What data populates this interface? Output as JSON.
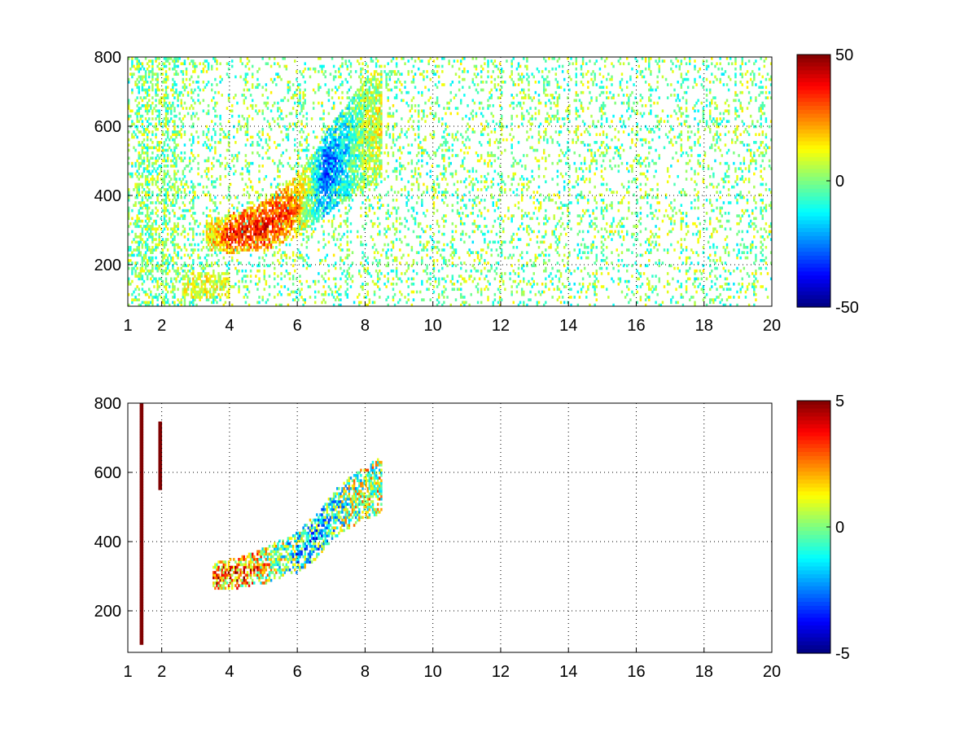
{
  "chart_data": [
    {
      "type": "heatmap",
      "panel": "top",
      "title": "",
      "xlabel": "",
      "ylabel": "",
      "xlim": [
        1,
        20
      ],
      "ylim": [
        80,
        800
      ],
      "xticks": [
        1,
        2,
        4,
        6,
        8,
        10,
        12,
        14,
        16,
        18,
        20
      ],
      "yticks": [
        200,
        400,
        600,
        800
      ],
      "grid": true,
      "colormap": "jet",
      "color_limits": [
        -50,
        50
      ],
      "colorbar_ticks": [
        50,
        0,
        -50
      ],
      "noise_density": 0.16,
      "noise_value_range": [
        -15,
        15
      ],
      "ridge": {
        "description": "curved high-amplitude band rising from ~280 at x=3.5 to ~600 at x=8",
        "centerline": [
          {
            "x": 3.4,
            "y": 285
          },
          {
            "x": 4.0,
            "y": 290
          },
          {
            "x": 5.0,
            "y": 310
          },
          {
            "x": 6.0,
            "y": 370
          },
          {
            "x": 6.5,
            "y": 420
          },
          {
            "x": 7.0,
            "y": 480
          },
          {
            "x": 7.5,
            "y": 530
          },
          {
            "x": 8.0,
            "y": 580
          },
          {
            "x": 8.4,
            "y": 610
          }
        ],
        "half_width": [
          {
            "x": 3.4,
            "w": 45
          },
          {
            "x": 6.0,
            "w": 90
          },
          {
            "x": 8.4,
            "w": 170
          }
        ],
        "value_profile": [
          {
            "x": 3.4,
            "v": 15
          },
          {
            "x": 4.0,
            "v": 35
          },
          {
            "x": 5.0,
            "v": 40
          },
          {
            "x": 5.8,
            "v": 30
          },
          {
            "x": 6.3,
            "v": 5
          },
          {
            "x": 6.8,
            "v": -30
          },
          {
            "x": 7.3,
            "v": -20
          },
          {
            "x": 8.0,
            "v": 5
          },
          {
            "x": 8.4,
            "v": 10
          }
        ],
        "low_patch": {
          "x": [
            2.6,
            4.0
          ],
          "y": [
            100,
            180
          ],
          "value": 10
        }
      }
    },
    {
      "type": "heatmap",
      "panel": "bottom",
      "title": "",
      "xlabel": "",
      "ylabel": "",
      "xlim": [
        1,
        20
      ],
      "ylim": [
        80,
        800
      ],
      "xticks": [
        1,
        2,
        4,
        6,
        8,
        10,
        12,
        14,
        16,
        18,
        20
      ],
      "yticks": [
        200,
        400,
        600,
        800
      ],
      "grid": true,
      "colormap": "jet",
      "color_limits": [
        -5,
        5
      ],
      "colorbar_ticks": [
        5,
        0,
        -5
      ],
      "noise_density": 0.0,
      "ridge": {
        "description": "same curved band, values fluctuating between -5 and 5 (red at left, mixed blue/green/yellow at right)",
        "centerline": [
          {
            "x": 3.6,
            "y": 300
          },
          {
            "x": 4.0,
            "y": 305
          },
          {
            "x": 5.0,
            "y": 330
          },
          {
            "x": 6.0,
            "y": 370
          },
          {
            "x": 6.5,
            "y": 410
          },
          {
            "x": 7.0,
            "y": 470
          },
          {
            "x": 7.5,
            "y": 510
          },
          {
            "x": 8.0,
            "y": 540
          },
          {
            "x": 8.4,
            "y": 560
          }
        ],
        "half_width": [
          {
            "x": 3.6,
            "w": 40
          },
          {
            "x": 6.0,
            "w": 60
          },
          {
            "x": 8.4,
            "w": 80
          }
        ],
        "value_profile": [
          {
            "x": 3.6,
            "v": 3
          },
          {
            "x": 4.5,
            "v": 3
          },
          {
            "x": 5.5,
            "v": 0
          },
          {
            "x": 6.5,
            "v": -2
          },
          {
            "x": 7.5,
            "v": 0
          },
          {
            "x": 8.4,
            "v": 1
          }
        ],
        "vertical_streaks": [
          {
            "x": 1.4,
            "y": [
              100,
              800
            ],
            "value": 5
          },
          {
            "x": 1.95,
            "y": [
              550,
              750
            ],
            "value": 5
          }
        ]
      }
    }
  ]
}
